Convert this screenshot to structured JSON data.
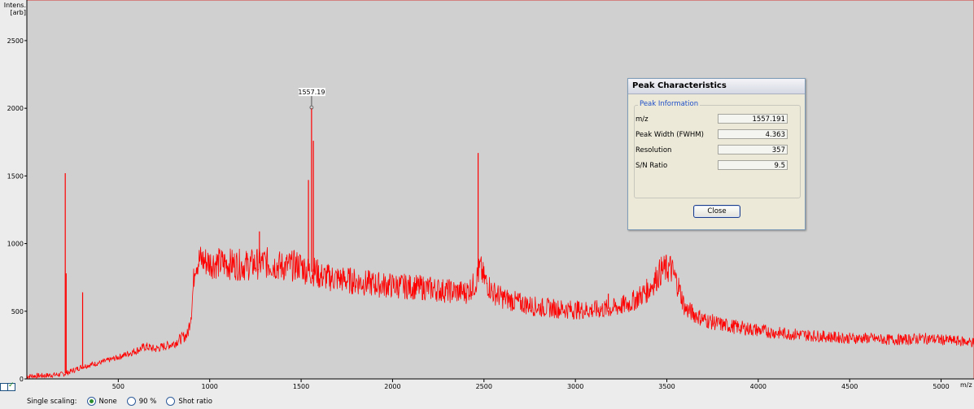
{
  "y_axis_label": [
    "Intens.",
    "[arb]"
  ],
  "x_axis_label": "m/z",
  "chart_data": {
    "type": "line",
    "xlabel": "m/z",
    "ylabel": "Intens. [arb]",
    "xlim": [
      0,
      5180
    ],
    "ylim": [
      0,
      2800
    ],
    "x_ticks": [
      500,
      1000,
      1500,
      2000,
      2500,
      3000,
      3500,
      4000,
      4500,
      5000
    ],
    "y_ticks": [
      0,
      500,
      1000,
      1500,
      2000,
      2500
    ],
    "grid": false,
    "series": [
      {
        "color": "#ff0000",
        "x": [
          0,
          100,
          200,
          250,
          300,
          400,
          500,
          600,
          650,
          700,
          800,
          880,
          900,
          920,
          950,
          1000,
          1100,
          1200,
          1300,
          1400,
          1500,
          1530,
          1560,
          1580,
          1600,
          1700,
          1800,
          1900,
          2000,
          2100,
          2200,
          2300,
          2400,
          2450,
          2480,
          2500,
          2550,
          2600,
          2700,
          2800,
          2900,
          3000,
          3100,
          3200,
          3300,
          3400,
          3470,
          3520,
          3560,
          3600,
          3700,
          3800,
          3900,
          4000,
          4100,
          4200,
          4300,
          4400,
          4500,
          4600,
          4700,
          4800,
          4900,
          5000,
          5100,
          5180
        ],
        "y": [
          20,
          25,
          35,
          60,
          90,
          120,
          160,
          210,
          240,
          220,
          260,
          330,
          500,
          860,
          880,
          860,
          850,
          840,
          860,
          830,
          840,
          800,
          790,
          800,
          760,
          740,
          720,
          700,
          690,
          680,
          670,
          650,
          640,
          700,
          820,
          740,
          640,
          600,
          560,
          530,
          520,
          510,
          510,
          520,
          560,
          660,
          800,
          820,
          700,
          520,
          440,
          400,
          380,
          360,
          340,
          330,
          320,
          310,
          300,
          300,
          290,
          290,
          300,
          290,
          280,
          270
        ]
      }
    ],
    "peaks": [
      {
        "x": 210,
        "y": 1520
      },
      {
        "x": 215,
        "y": 780
      },
      {
        "x": 305,
        "y": 640
      },
      {
        "x": 1272,
        "y": 1090
      },
      {
        "x": 1540,
        "y": 1470
      },
      {
        "x": 1557,
        "y": 2000
      },
      {
        "x": 1567,
        "y": 1760
      },
      {
        "x": 2468,
        "y": 1670
      },
      {
        "x": 3180,
        "y": 630
      }
    ],
    "annotations": [
      {
        "x": 1557.19,
        "y": 2000,
        "text": "1557.19"
      }
    ]
  },
  "dialog": {
    "title": "Peak Characteristics",
    "group_label": "Peak Information",
    "fields": [
      {
        "label": "m/z",
        "value": "1557.191"
      },
      {
        "label": "Peak Width (FWHM)",
        "value": "4.363"
      },
      {
        "label": "Resolution",
        "value": "357"
      },
      {
        "label": "S/N Ratio",
        "value": "9.5"
      }
    ],
    "close_label": "Close"
  },
  "bottom": {
    "scaling_label": "Single scaling:",
    "options": [
      "None",
      "90 %",
      "Shot ratio"
    ],
    "selected": "None"
  }
}
